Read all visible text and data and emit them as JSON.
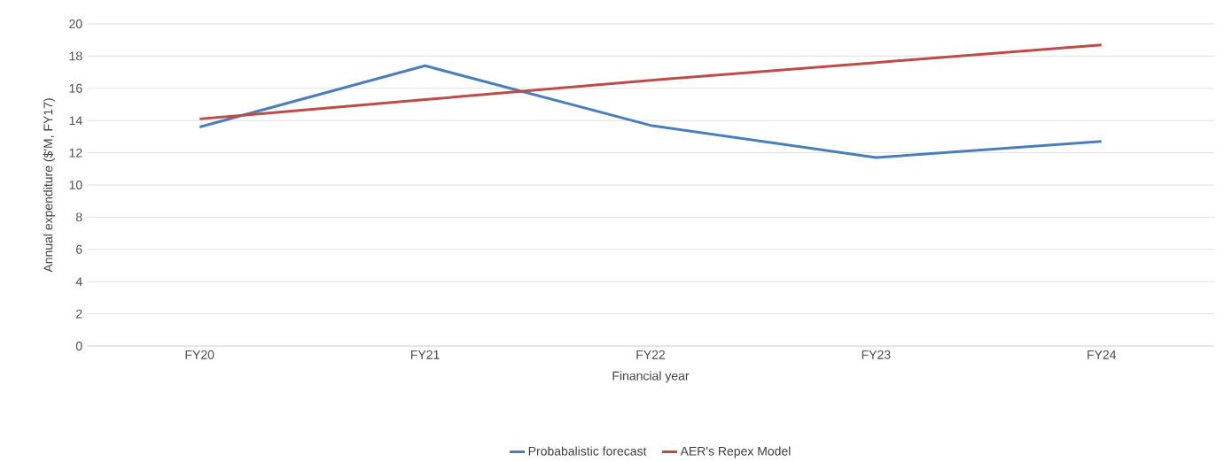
{
  "chart_data": {
    "type": "line",
    "xlabel": "Financial year",
    "ylabel": "Annual expenditure ($'M, FY17)",
    "categories": [
      "FY20",
      "FY21",
      "FY22",
      "FY23",
      "FY24"
    ],
    "series": [
      {
        "name": "Probabalistic forecast",
        "color": "#4a7ebb",
        "values": [
          13.6,
          17.4,
          13.7,
          11.7,
          12.7
        ]
      },
      {
        "name": "AER's Repex Model",
        "color": "#be4b48",
        "values": [
          14.1,
          15.3,
          16.5,
          17.6,
          18.7
        ]
      }
    ],
    "ylim": [
      0,
      20
    ],
    "yticks": [
      0,
      2,
      4,
      6,
      8,
      10,
      12,
      14,
      16,
      18,
      20
    ],
    "grid": "y",
    "legend": "bottom",
    "marker": "none",
    "line_style": "solid"
  }
}
